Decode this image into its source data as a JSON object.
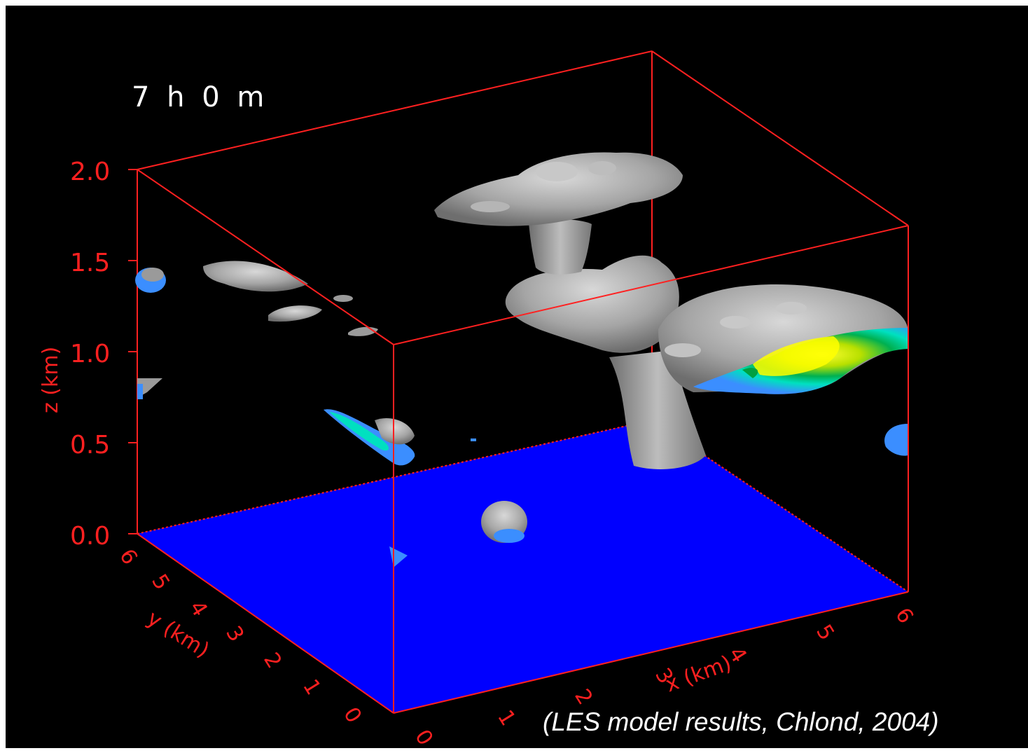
{
  "timestamp": "7 h  0 m",
  "caption": "(LES model results, Chlond, 2004)",
  "axes": {
    "z_label": "z (km)",
    "x_label": "x (km)",
    "y_label": "y (km)",
    "z_ticks": [
      "2.0",
      "1.5",
      "1.0",
      "0.5",
      "0.0"
    ],
    "x_ticks": [
      "0",
      "1",
      "2",
      "3",
      "4",
      "5",
      "6"
    ],
    "y_ticks": [
      "0",
      "1",
      "2",
      "3",
      "4",
      "5",
      "6"
    ]
  },
  "colors": {
    "background": "#000000",
    "box": "#ff2020",
    "ground": "#0000ff",
    "cloud": "#a0a0a0",
    "cloud_base": "#3b8eff",
    "liquid_high": "#ffff00",
    "liquid_mid": "#00c060"
  }
}
